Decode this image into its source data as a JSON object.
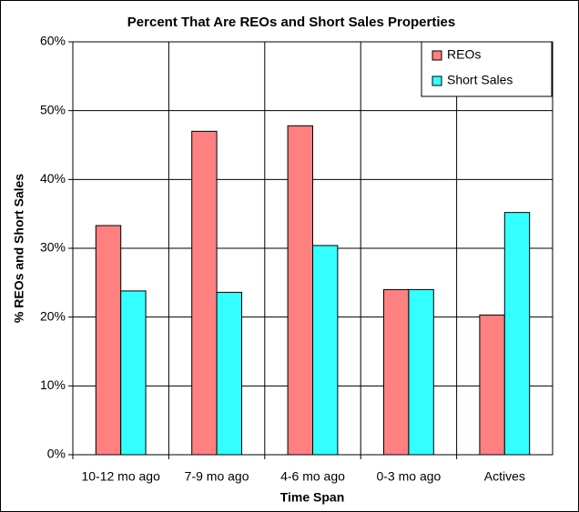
{
  "chart_data": {
    "type": "bar",
    "title": "Percent That Are REOs and Short Sales Properties",
    "x_label": "Time Span",
    "y_label": "% REOs and Short Sales",
    "categories": [
      "10-12 mo ago",
      "7-9 mo ago",
      "4-6 mo ago",
      "0-3 mo ago",
      "Actives"
    ],
    "series": [
      {
        "name": "REOs",
        "color": "#ff8080",
        "values": [
          33.3,
          47.0,
          47.8,
          24.0,
          20.3
        ]
      },
      {
        "name": "Short Sales",
        "color": "#33ffff",
        "values": [
          23.8,
          23.6,
          30.4,
          24.0,
          35.2
        ]
      }
    ],
    "ylim": [
      0,
      60
    ],
    "yticks": [
      {
        "value": 0,
        "label": "0%"
      },
      {
        "value": 10,
        "label": "10%"
      },
      {
        "value": 20,
        "label": "20%"
      },
      {
        "value": 30,
        "label": "30%"
      },
      {
        "value": 40,
        "label": "40%"
      },
      {
        "value": 50,
        "label": "50%"
      },
      {
        "value": 60,
        "label": "60%"
      }
    ],
    "grid": true,
    "legend": "upper right"
  }
}
